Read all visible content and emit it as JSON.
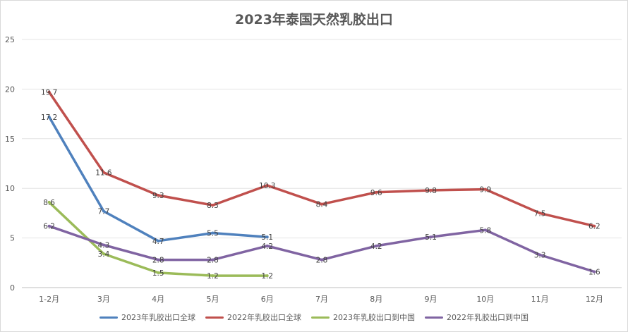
{
  "chart_data": {
    "type": "line",
    "title": "2023年泰国天然乳胶出口",
    "xlabel": "",
    "ylabel": "",
    "categories": [
      "1-2月",
      "3月",
      "4月",
      "5月",
      "6月",
      "7月",
      "8月",
      "9月",
      "10月",
      "11月",
      "12月"
    ],
    "ylim": [
      0,
      25
    ],
    "yticks": [
      "0",
      "5",
      "10",
      "15",
      "20",
      "25"
    ],
    "grid": true,
    "legend_position": "bottom",
    "series": [
      {
        "name": "2023年乳胶出口全球",
        "color": "#4f81bd",
        "values": [
          17.2,
          7.7,
          4.7,
          5.5,
          5.1,
          null,
          null,
          null,
          null,
          null,
          null
        ]
      },
      {
        "name": "2022年乳胶出口全球",
        "color": "#c0504d",
        "values": [
          19.7,
          11.6,
          9.3,
          8.3,
          10.3,
          8.4,
          9.6,
          9.8,
          9.9,
          7.5,
          6.2
        ]
      },
      {
        "name": "2023年乳胶出口到中国",
        "color": "#9bbb59",
        "values": [
          8.6,
          3.4,
          1.5,
          1.2,
          1.2,
          null,
          null,
          null,
          null,
          null,
          null
        ]
      },
      {
        "name": "2022年乳胶出口到中国",
        "color": "#8064a2",
        "values": [
          6.2,
          4.3,
          2.8,
          2.8,
          4.2,
          2.8,
          4.2,
          5.1,
          5.8,
          3.3,
          1.6
        ]
      }
    ]
  }
}
